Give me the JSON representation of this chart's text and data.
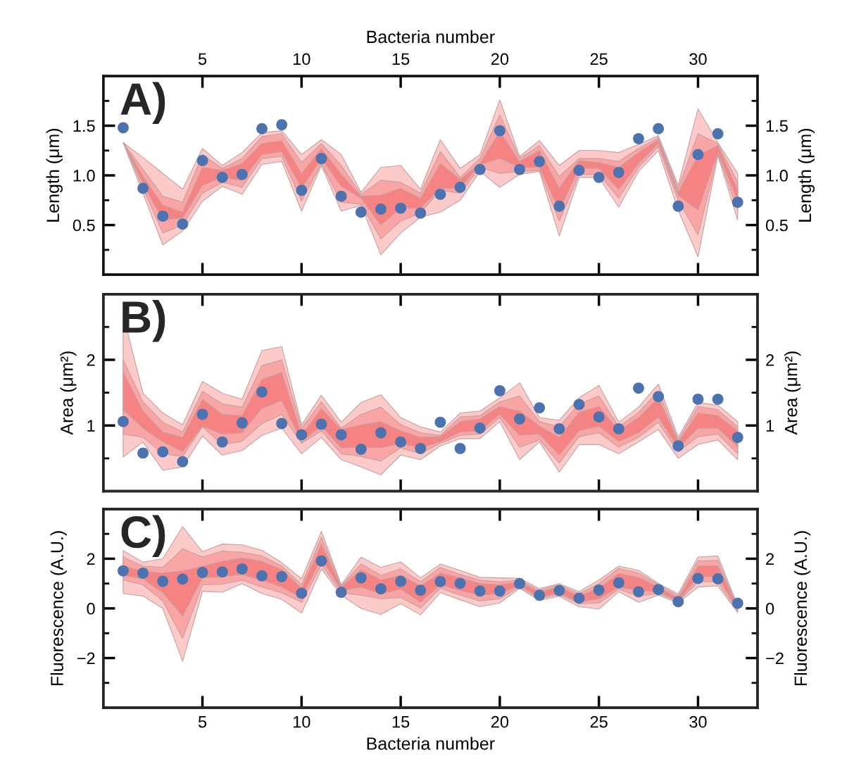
{
  "chart_data": [
    {
      "type": "scatter",
      "x": [
        1,
        2,
        3,
        4,
        5,
        6,
        7,
        8,
        9,
        10,
        11,
        12,
        13,
        14,
        15,
        16,
        17,
        18,
        19,
        20,
        21,
        22,
        23,
        24,
        25,
        26,
        27,
        28,
        29,
        30,
        31,
        32
      ],
      "xlim": [
        0,
        33
      ],
      "xticks": [
        5,
        10,
        15,
        20,
        25,
        30
      ],
      "x2lim": [
        0,
        33
      ],
      "x2ticks": [
        5,
        10,
        15,
        20,
        25,
        30
      ],
      "x2label": "Bacteria number",
      "ylabel": "Length (μm)",
      "ylim": [
        0,
        2
      ],
      "yticks": [
        {
          "value": 0.25,
          "label": null
        },
        0.5,
        {
          "value": 0.75,
          "label": null
        },
        {
          "value": 1,
          "label": "1.0"
        },
        {
          "value": 1.25,
          "label": null
        },
        1.5,
        {
          "value": 1.75,
          "label": null
        }
      ],
      "y2label": "Length (μm)",
      "y2lim": [
        0,
        2
      ],
      "y2ticks": [
        {
          "value": 0.25,
          "label": null
        },
        0.5,
        {
          "value": 0.75,
          "label": null
        },
        {
          "value": 1,
          "label": "1.0"
        },
        {
          "value": 1.25,
          "label": null
        },
        1.5,
        {
          "value": 1.75,
          "label": null
        }
      ],
      "tick_labels": "y",
      "annotations": [
        "A)"
      ],
      "series": [
        {
          "type": "area",
          "color": "#fdcaca",
          "values": [
            null,
            null,
            null,
            null,
            null,
            null,
            null,
            null,
            null,
            null,
            null,
            null,
            null,
            null,
            null,
            null,
            null,
            null,
            null,
            null,
            null,
            null,
            null,
            null,
            null,
            null,
            null,
            null,
            null,
            null,
            null,
            null
          ],
          "lower": [
            1.33,
            0.82,
            0.3,
            0.44,
            0.74,
            0.89,
            0.81,
            1.11,
            1.14,
            0.64,
            1.1,
            0.64,
            0.7,
            0.2,
            0.42,
            0.58,
            0.63,
            0.75,
            1.04,
            0.88,
            1.01,
            1.04,
            0.39,
            0.98,
            0.98,
            0.68,
            1.04,
            1.25,
            0.65,
            0.18,
            1.2,
            0.55
          ],
          "upper": [
            1.33,
            1.18,
            1.02,
            0.86,
            1.27,
            1.1,
            1.23,
            1.43,
            1.45,
            1.21,
            1.36,
            1.21,
            0.83,
            1.08,
            1.1,
            0.86,
            1.36,
            1.07,
            1.21,
            1.76,
            1.19,
            1.35,
            1.1,
            1.25,
            1.25,
            1.23,
            1.31,
            1.4,
            0.9,
            1.67,
            1.33,
            1.02
          ]
        },
        {
          "type": "area",
          "color": "#f9a5a5",
          "values": [
            null,
            null,
            null,
            null,
            null,
            null,
            null,
            null,
            null,
            null,
            null,
            null,
            null,
            null,
            null,
            null,
            null,
            null,
            null,
            null,
            null,
            null,
            null,
            null,
            null,
            null,
            null,
            null,
            null,
            null,
            null,
            null
          ],
          "lower": [
            1.33,
            0.87,
            0.42,
            0.5,
            0.82,
            0.93,
            0.88,
            1.17,
            1.19,
            0.74,
            1.12,
            0.73,
            0.71,
            0.36,
            0.54,
            0.62,
            0.85,
            0.82,
            1.08,
            1.02,
            1.04,
            1.05,
            0.54,
            1.01,
            1.01,
            0.77,
            1.08,
            1.29,
            0.75,
            0.4,
            1.21,
            0.65
          ],
          "upper": [
            1.33,
            1.06,
            0.79,
            0.73,
            1.21,
            1.07,
            1.17,
            1.39,
            1.42,
            1.13,
            1.32,
            1.1,
            0.81,
            0.95,
            0.93,
            0.82,
            1.24,
            0.98,
            1.17,
            1.61,
            1.17,
            1.3,
            0.99,
            1.17,
            1.17,
            1.14,
            1.27,
            1.38,
            0.87,
            1.42,
            1.32,
            0.93
          ]
        },
        {
          "type": "area",
          "color": "#f58383",
          "values": [
            null,
            null,
            null,
            null,
            null,
            null,
            null,
            null,
            null,
            null,
            null,
            null,
            null,
            null,
            null,
            null,
            null,
            null,
            null,
            null,
            null,
            null,
            null,
            null,
            null,
            null,
            null,
            null,
            null,
            null,
            null,
            null
          ],
          "lower": [
            1.33,
            0.92,
            0.55,
            0.57,
            0.9,
            0.98,
            0.95,
            1.21,
            1.24,
            0.87,
            1.17,
            0.89,
            0.77,
            0.5,
            0.67,
            0.67,
            0.87,
            0.87,
            1.11,
            1.17,
            1.08,
            1.08,
            0.65,
            1.07,
            1.07,
            0.86,
            1.12,
            1.32,
            0.8,
            0.65,
            1.23,
            0.75
          ],
          "upper": [
            1.33,
            0.99,
            0.7,
            0.63,
            1.08,
            1.05,
            1.12,
            1.32,
            1.35,
            1.02,
            1.27,
            1.01,
            0.79,
            0.8,
            0.87,
            0.77,
            1.12,
            0.96,
            1.12,
            1.44,
            1.14,
            1.25,
            0.87,
            1.15,
            1.13,
            1.08,
            1.23,
            1.36,
            0.83,
            1.2,
            1.3,
            0.85
          ]
        },
        {
          "type": "scatter",
          "color": "#4c72b0",
          "marker": "circle",
          "values": [
            1.48,
            0.87,
            0.59,
            0.51,
            1.15,
            0.98,
            1.01,
            1.47,
            1.51,
            0.85,
            1.17,
            0.79,
            0.63,
            0.66,
            0.67,
            0.62,
            0.81,
            0.88,
            1.06,
            1.45,
            1.06,
            1.14,
            0.69,
            1.05,
            0.98,
            1.03,
            1.37,
            1.47,
            0.69,
            1.21,
            1.42,
            0.73
          ]
        }
      ]
    },
    {
      "type": "scatter",
      "x": [
        1,
        2,
        3,
        4,
        5,
        6,
        7,
        8,
        9,
        10,
        11,
        12,
        13,
        14,
        15,
        16,
        17,
        18,
        19,
        20,
        21,
        22,
        23,
        24,
        25,
        26,
        27,
        28,
        29,
        30,
        31,
        32
      ],
      "xlim": [
        0,
        33
      ],
      "xticks": [
        5,
        10,
        15,
        20,
        25,
        30
      ],
      "ylabel": "Area (μm²)",
      "ylim": [
        0,
        3
      ],
      "yticks": [
        {
          "value": 0.5,
          "label": null
        },
        1,
        {
          "value": 1.5,
          "label": null
        },
        2,
        {
          "value": 2.5,
          "label": null
        }
      ],
      "y2label": "Area (μm²)",
      "y2lim": [
        0,
        3
      ],
      "y2ticks": [
        {
          "value": 0.5,
          "label": null
        },
        1,
        {
          "value": 1.5,
          "label": null
        },
        2,
        {
          "value": 2.5,
          "label": null
        }
      ],
      "tick_labels": "y",
      "annotations": [
        "B)"
      ],
      "series": [
        {
          "type": "area",
          "color": "#fdcaca",
          "values": [
            null,
            null,
            null,
            null,
            null,
            null,
            null,
            null,
            null,
            null,
            null,
            null,
            null,
            null,
            null,
            null,
            null,
            null,
            null,
            null,
            null,
            null,
            null,
            null,
            null,
            null,
            null,
            null,
            null,
            null,
            null,
            null
          ],
          "lower": [
            0.52,
            0.75,
            0.32,
            0.37,
            0.84,
            0.55,
            0.62,
            0.85,
            0.96,
            0.57,
            0.82,
            0.48,
            0.37,
            0.25,
            0.55,
            0.48,
            0.69,
            0.8,
            0.8,
            1.06,
            0.48,
            0.75,
            0.29,
            0.71,
            0.71,
            0.57,
            0.75,
            0.94,
            0.5,
            0.71,
            0.78,
            0.48
          ],
          "upper": [
            2.69,
            1.49,
            1.19,
            1.01,
            1.67,
            1.49,
            1.4,
            2.14,
            2.2,
            1.01,
            1.46,
            1.05,
            1.35,
            1.47,
            1.12,
            0.98,
            0.9,
            1.19,
            1.22,
            1.42,
            1.65,
            1.12,
            1.08,
            1.42,
            1.61,
            1.05,
            1.28,
            1.63,
            0.82,
            1.35,
            1.31,
            1.06
          ]
        },
        {
          "type": "area",
          "color": "#f9a5a5",
          "values": [
            null,
            null,
            null,
            null,
            null,
            null,
            null,
            null,
            null,
            null,
            null,
            null,
            null,
            null,
            null,
            null,
            null,
            null,
            null,
            null,
            null,
            null,
            null,
            null,
            null,
            null,
            null,
            null,
            null,
            null,
            null,
            null
          ],
          "lower": [
            0.87,
            0.82,
            0.57,
            0.53,
            0.98,
            0.71,
            0.76,
            1.03,
            1.17,
            0.73,
            0.92,
            0.57,
            0.53,
            0.46,
            0.66,
            0.57,
            0.73,
            0.85,
            0.87,
            1.12,
            0.67,
            0.78,
            0.43,
            0.83,
            0.89,
            0.67,
            0.82,
            1.05,
            0.6,
            0.83,
            0.87,
            0.57
          ],
          "upper": [
            2.0,
            1.36,
            1.05,
            0.9,
            1.52,
            1.33,
            1.28,
            1.91,
            2.0,
            0.96,
            1.36,
            0.96,
            1.17,
            1.28,
            1.01,
            0.89,
            0.85,
            1.13,
            1.15,
            1.36,
            1.45,
            1.06,
            0.98,
            1.33,
            1.45,
            0.98,
            1.2,
            1.52,
            0.78,
            1.29,
            1.24,
            0.98
          ]
        },
        {
          "type": "area",
          "color": "#f58383",
          "values": [
            null,
            null,
            null,
            null,
            null,
            null,
            null,
            null,
            null,
            null,
            null,
            null,
            null,
            null,
            null,
            null,
            null,
            null,
            null,
            null,
            null,
            null,
            null,
            null,
            null,
            null,
            null,
            null,
            null,
            null,
            null,
            null
          ],
          "lower": [
            1.24,
            0.96,
            0.75,
            0.6,
            0.99,
            0.87,
            0.89,
            1.26,
            1.38,
            0.76,
            0.99,
            0.66,
            0.67,
            0.66,
            0.73,
            0.66,
            0.75,
            0.9,
            0.92,
            1.17,
            0.85,
            0.87,
            0.55,
            0.92,
            0.99,
            0.76,
            0.89,
            1.13,
            0.66,
            0.96,
            0.96,
            0.67
          ],
          "upper": [
            1.81,
            1.22,
            0.9,
            0.82,
            1.4,
            1.17,
            1.15,
            1.7,
            1.81,
            0.85,
            1.26,
            0.94,
            1.01,
            1.06,
            0.92,
            0.82,
            0.83,
            1.06,
            1.1,
            1.29,
            1.22,
            0.99,
            0.82,
            1.2,
            1.29,
            0.92,
            1.12,
            1.42,
            0.75,
            1.19,
            1.15,
            0.92
          ]
        },
        {
          "type": "scatter",
          "color": "#4c72b0",
          "marker": "circle",
          "values": [
            1.06,
            0.58,
            0.6,
            0.45,
            1.17,
            0.75,
            1.04,
            1.51,
            1.03,
            0.86,
            1.02,
            0.86,
            0.64,
            0.89,
            0.75,
            0.65,
            1.05,
            0.65,
            0.96,
            1.53,
            1.1,
            1.27,
            0.95,
            1.32,
            1.13,
            0.95,
            1.57,
            1.44,
            0.69,
            1.4,
            1.4,
            0.82
          ]
        }
      ]
    },
    {
      "type": "scatter",
      "x": [
        1,
        2,
        3,
        4,
        5,
        6,
        7,
        8,
        9,
        10,
        11,
        12,
        13,
        14,
        15,
        16,
        17,
        18,
        19,
        20,
        21,
        22,
        23,
        24,
        25,
        26,
        27,
        28,
        29,
        30,
        31,
        32
      ],
      "xlim": [
        0,
        33
      ],
      "xticks": [
        5,
        10,
        15,
        20,
        25,
        30
      ],
      "xlabel": "Bacteria number",
      "ylabel": "Fluorescence (A.U.)",
      "ylim": [
        -4,
        4
      ],
      "yticks": [
        {
          "value": -3,
          "label": null
        },
        {
          "value": -2,
          "label": "−2"
        },
        {
          "value": -1,
          "label": null
        },
        0,
        {
          "value": 1,
          "label": null
        },
        2,
        {
          "value": 3,
          "label": null
        }
      ],
      "y2label": "Fluorescence (A.U.)",
      "y2lim": [
        -4,
        4
      ],
      "y2ticks": [
        {
          "value": -3,
          "label": null
        },
        {
          "value": -2,
          "label": "−2"
        },
        {
          "value": -1,
          "label": null
        },
        0,
        {
          "value": 1,
          "label": null
        },
        2,
        {
          "value": 3,
          "label": null
        }
      ],
      "annotations": [
        "C)"
      ],
      "series": [
        {
          "type": "area",
          "color": "#fdcaca",
          "values": [
            null,
            null,
            null,
            null,
            null,
            null,
            null,
            null,
            null,
            null,
            null,
            null,
            null,
            null,
            null,
            null,
            null,
            null,
            null,
            null,
            null,
            null,
            null,
            null,
            null,
            null,
            null,
            null,
            null,
            null,
            null,
            null
          ],
          "lower": [
            0.6,
            0.5,
            0.0,
            -2.13,
            0.69,
            0.65,
            1.0,
            0.6,
            0.37,
            -0.19,
            1.59,
            0.53,
            0.0,
            -0.24,
            0.19,
            -0.26,
            0.63,
            0.35,
            0.07,
            0.22,
            0.81,
            0.32,
            0.49,
            0.07,
            -0.03,
            0.67,
            0.25,
            0.53,
            0.22,
            0.86,
            0.91,
            -0.17
          ],
          "upper": [
            2.33,
            1.86,
            2.0,
            3.29,
            2.28,
            2.59,
            2.56,
            2.34,
            1.84,
            1.19,
            3.1,
            0.95,
            2.06,
            1.65,
            1.87,
            1.23,
            1.79,
            1.53,
            1.25,
            1.23,
            1.21,
            0.79,
            1.0,
            0.67,
            1.14,
            1.7,
            1.53,
            1.0,
            0.58,
            2.07,
            2.11,
            0.11
          ]
        },
        {
          "type": "area",
          "color": "#f9a5a5",
          "values": [
            null,
            null,
            null,
            null,
            null,
            null,
            null,
            null,
            null,
            null,
            null,
            null,
            null,
            null,
            null,
            null,
            null,
            null,
            null,
            null,
            null,
            null,
            null,
            null,
            null,
            null,
            null,
            null,
            null,
            null,
            null,
            null
          ],
          "lower": [
            1.14,
            0.95,
            0.3,
            -1.21,
            0.95,
            0.97,
            1.14,
            0.86,
            0.63,
            0.25,
            1.75,
            0.63,
            0.53,
            0.39,
            0.44,
            0.02,
            0.81,
            0.53,
            0.3,
            0.39,
            0.86,
            0.39,
            0.56,
            0.19,
            0.21,
            0.77,
            0.49,
            0.6,
            0.27,
            1.07,
            1.07,
            -0.12
          ],
          "upper": [
            2.06,
            1.7,
            1.65,
            2.4,
            2.07,
            2.31,
            2.26,
            2.12,
            1.7,
            0.95,
            2.87,
            0.91,
            1.79,
            1.33,
            1.59,
            1.07,
            1.65,
            1.37,
            1.14,
            1.07,
            1.14,
            0.72,
            0.95,
            0.58,
            1.0,
            1.61,
            1.42,
            0.95,
            0.5,
            1.91,
            1.93,
            0.07
          ]
        },
        {
          "type": "area",
          "color": "#f58383",
          "values": [
            null,
            null,
            null,
            null,
            null,
            null,
            null,
            null,
            null,
            null,
            null,
            null,
            null,
            null,
            null,
            null,
            null,
            null,
            null,
            null,
            null,
            null,
            null,
            null,
            null,
            null,
            null,
            null,
            null,
            null,
            null,
            null
          ],
          "lower": [
            1.33,
            1.19,
            0.63,
            -0.31,
            1.23,
            1.28,
            1.37,
            1.14,
            0.86,
            0.44,
            2.03,
            0.72,
            0.86,
            0.58,
            0.77,
            0.25,
            0.95,
            0.72,
            0.53,
            0.6,
            0.93,
            0.44,
            0.63,
            0.25,
            0.39,
            0.86,
            0.72,
            0.67,
            0.3,
            1.28,
            1.28,
            -0.07
          ],
          "upper": [
            1.72,
            1.5,
            1.42,
            1.51,
            1.7,
            1.89,
            2.03,
            1.89,
            1.56,
            0.81,
            2.59,
            0.86,
            1.56,
            1.14,
            1.33,
            0.91,
            1.42,
            1.23,
            1.0,
            0.95,
            1.07,
            0.65,
            0.86,
            0.49,
            0.81,
            1.4,
            1.25,
            0.86,
            0.41,
            1.7,
            1.72,
            0.02
          ]
        },
        {
          "type": "scatter",
          "color": "#4c72b0",
          "marker": "circle",
          "values": [
            1.51,
            1.42,
            1.09,
            1.18,
            1.45,
            1.47,
            1.59,
            1.31,
            1.28,
            0.61,
            1.91,
            0.65,
            1.23,
            0.79,
            1.09,
            0.73,
            1.08,
            1.01,
            0.7,
            0.7,
            1.0,
            0.53,
            0.72,
            0.41,
            0.74,
            1.03,
            0.67,
            0.76,
            0.27,
            1.21,
            1.19,
            0.21
          ]
        }
      ]
    }
  ]
}
